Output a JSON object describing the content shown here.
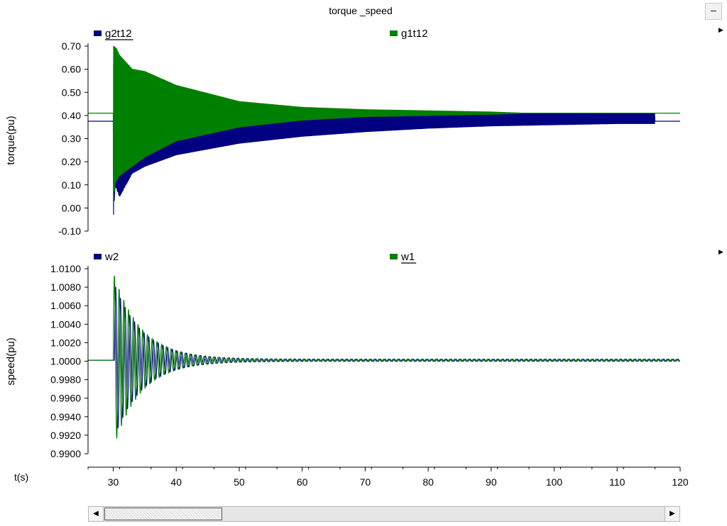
{
  "window": {
    "title": "torque _speed",
    "minimize_label": "–"
  },
  "side_arrows": {
    "top": "▶",
    "middle": "▶"
  },
  "scrollbar": {
    "left_arrow": "◀",
    "right_arrow": "▶"
  },
  "chart_data": [
    {
      "type": "line",
      "title": "torque _speed",
      "ylabel": "torque(pu)",
      "ylim": [
        -0.1,
        0.7
      ],
      "yticks": [
        "0.70",
        "0.60",
        "0.50",
        "0.40",
        "0.30",
        "0.20",
        "0.10",
        "0.00",
        "-0.10"
      ],
      "ytick_values": [
        0.7,
        0.6,
        0.5,
        0.4,
        0.3,
        0.2,
        0.1,
        0.0,
        -0.1
      ],
      "xlim": [
        26,
        120
      ],
      "legend_placement": "top",
      "series": [
        {
          "name": "g2t12",
          "color": "#000080",
          "legend_underlined": true,
          "initial": 0.375,
          "final": 0.375,
          "event_start": 30,
          "envelope_upper": {
            "x": [
              30,
              31,
              35,
              40,
              50,
              60,
              70,
              80,
              90,
              100,
              110,
              116
            ],
            "y": [
              0.62,
              0.62,
              0.53,
              0.49,
              0.44,
              0.43,
              0.42,
              0.415,
              0.41,
              0.41,
              0.41,
              0.41
            ]
          },
          "envelope_lower": {
            "x": [
              30,
              30.3,
              31,
              33,
              35,
              40,
              50,
              60,
              70,
              80,
              90,
              100,
              110,
              116
            ],
            "y": [
              -0.06,
              0.1,
              0.05,
              0.15,
              0.18,
              0.23,
              0.28,
              0.31,
              0.33,
              0.345,
              0.355,
              0.36,
              0.365,
              0.365
            ]
          }
        },
        {
          "name": "g1t12",
          "color": "#008000",
          "legend_underlined": false,
          "initial": 0.41,
          "final": 0.41,
          "event_start": 30,
          "envelope_upper": {
            "x": [
              30,
              30.5,
              31,
              33,
              35,
              40,
              50,
              60,
              70,
              80,
              90,
              95
            ],
            "y": [
              0.7,
              0.69,
              0.66,
              0.6,
              0.59,
              0.53,
              0.46,
              0.435,
              0.425,
              0.42,
              0.415,
              0.41
            ]
          },
          "envelope_lower": {
            "x": [
              30,
              30.3,
              31,
              33,
              35,
              40,
              50,
              60,
              70,
              80,
              90,
              95
            ],
            "y": [
              0.02,
              0.11,
              0.14,
              0.18,
              0.22,
              0.29,
              0.35,
              0.38,
              0.395,
              0.4,
              0.405,
              0.41
            ]
          }
        }
      ]
    },
    {
      "type": "line",
      "ylabel": "speed(pu)",
      "ylim": [
        0.99,
        1.01
      ],
      "yticks": [
        "1.0100",
        "1.0080",
        "1.0060",
        "1.0040",
        "1.0020",
        "1.0000",
        "0.9980",
        "0.9960",
        "0.9940",
        "0.9920",
        "0.9900"
      ],
      "ytick_values": [
        1.01,
        1.008,
        1.006,
        1.004,
        1.002,
        1.0,
        0.998,
        0.996,
        0.994,
        0.992,
        0.99
      ],
      "xlabel": "t(s)",
      "xlim": [
        26,
        120
      ],
      "xticks": [
        30,
        40,
        50,
        60,
        70,
        80,
        90,
        100,
        110,
        120
      ],
      "legend_placement": "top",
      "series": [
        {
          "name": "w2",
          "color": "#000080",
          "legend_underlined": false,
          "initial": 1.0001,
          "final": 1.0001,
          "event_start": 30.2,
          "peak_amplitude": 0.0082,
          "decay_tau": 4.5,
          "period": 0.75
        },
        {
          "name": "w1",
          "color": "#008000",
          "legend_underlined": true,
          "initial": 1.0001,
          "final": 1.0001,
          "event_start": 30,
          "peak_amplitude": 0.0095,
          "decay_tau": 4.3,
          "period": 0.75
        }
      ]
    }
  ]
}
